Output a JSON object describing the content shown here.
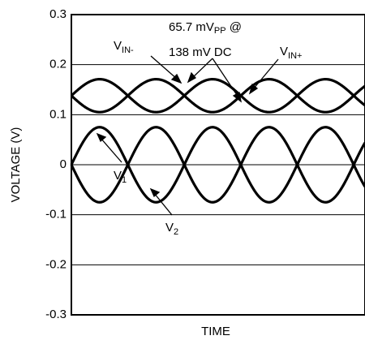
{
  "chart_data": {
    "type": "line",
    "title": "",
    "xlabel": "TIME",
    "ylabel": "VOLTAGE (V)",
    "ylim": [
      -0.3,
      0.3
    ],
    "yticks": [
      0.3,
      0.2,
      0.1,
      0,
      -0.1,
      -0.2,
      -0.3
    ],
    "ytick_labels": [
      "0.3",
      "0.2",
      "0.1",
      "0",
      "-0.1",
      "-0.2",
      "-0.3"
    ],
    "grid": "horizontal",
    "x_cycles": 2.6,
    "series": [
      {
        "name": "VIN+",
        "label_main": "V",
        "label_sub": "IN+",
        "offset": 0.138,
        "amplitude": 0.0329,
        "sign": -1
      },
      {
        "name": "VIN-",
        "label_main": "V",
        "label_sub": "IN-",
        "offset": 0.138,
        "amplitude": 0.0329,
        "sign": 1
      },
      {
        "name": "V1",
        "label_main": "V",
        "label_sub": "1",
        "offset": 0,
        "amplitude": 0.075,
        "sign": 1
      },
      {
        "name": "V2",
        "label_main": "V",
        "label_sub": "2",
        "offset": 0,
        "amplitude": 0.075,
        "sign": -1
      }
    ],
    "annotation": {
      "line1_prefix": "65.7 mV",
      "line1_sub": "PP",
      "line1_suffix": " @",
      "line2": "138 mV DC"
    }
  }
}
